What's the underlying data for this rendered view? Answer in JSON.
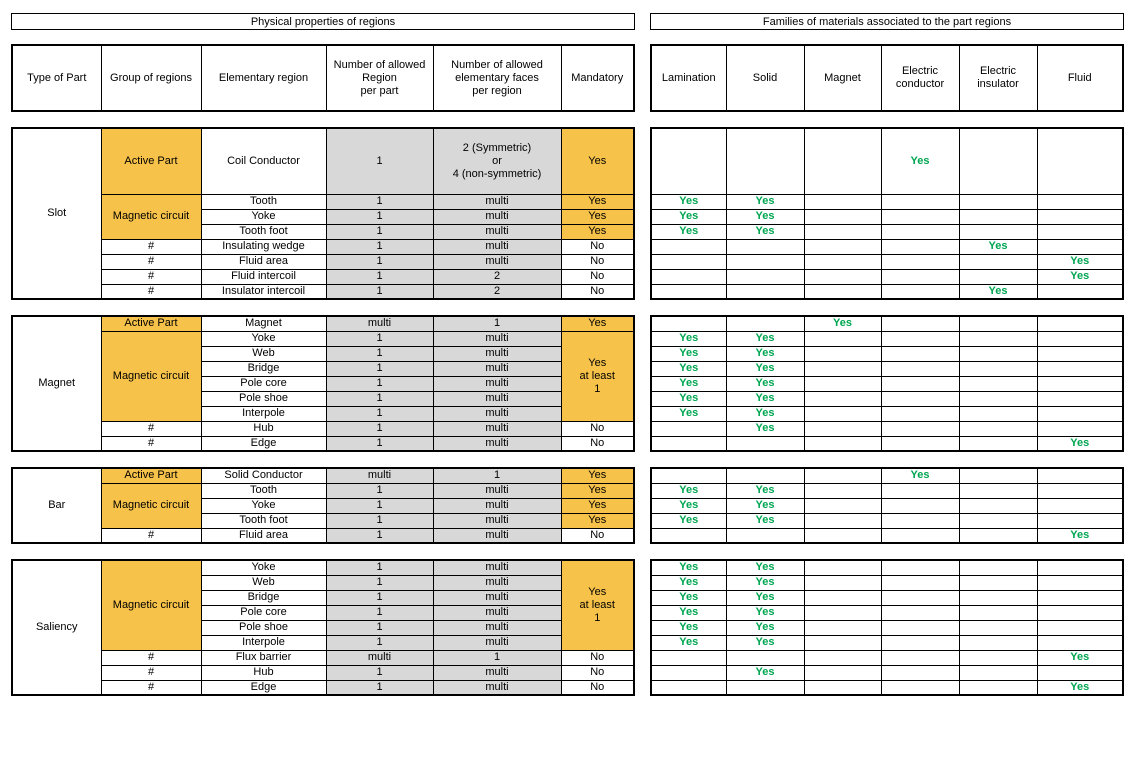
{
  "banners": {
    "left": "Physical properties of regions",
    "right": "Families of materials associated to the part regions"
  },
  "columns": {
    "left": [
      "Type of Part",
      "Group of regions",
      "Elementary region",
      "Number of allowed\nRegion\nper part",
      "Number of allowed\nelementary faces\nper region",
      "Mandatory"
    ],
    "right": [
      "Lamination",
      "Solid",
      "Magnet",
      "Electric\nconductor",
      "Electric\ninsulator",
      "Fluid"
    ]
  },
  "colors": {
    "orange": "#F7C24A",
    "gray": "#D8D8D8",
    "green": "#00A651",
    "border": "#000000"
  },
  "sections": [
    {
      "part": "Slot",
      "groups": [
        {
          "label": "Active Part",
          "span": 1,
          "orange": true
        },
        {
          "label": "Magnetic circuit",
          "span": 3,
          "orange": true
        },
        {
          "label": "#",
          "span": 1,
          "orange": false
        },
        {
          "label": "#",
          "span": 1,
          "orange": false
        },
        {
          "label": "#",
          "span": 1,
          "orange": false
        },
        {
          "label": "#",
          "span": 1,
          "orange": false
        }
      ],
      "mandatory": [
        {
          "text": "Yes",
          "span": 1,
          "orange": true
        },
        {
          "text": "Yes",
          "span": 1,
          "orange": true
        },
        {
          "text": "Yes",
          "span": 1,
          "orange": true
        },
        {
          "text": "Yes",
          "span": 1,
          "orange": true
        },
        {
          "text": "No",
          "span": 1,
          "orange": false
        },
        {
          "text": "No",
          "span": 1,
          "orange": false
        },
        {
          "text": "No",
          "span": 1,
          "orange": false
        },
        {
          "text": "No",
          "span": 1,
          "orange": false
        }
      ],
      "rows": [
        {
          "region": "Coil Conductor",
          "per_part": "1",
          "faces": "2 (Symmetric)\nor\n4 (non-symmetric)",
          "tall": true,
          "materials": [
            "",
            "",
            "",
            "Yes",
            "",
            ""
          ]
        },
        {
          "region": "Tooth",
          "per_part": "1",
          "faces": "multi",
          "materials": [
            "Yes",
            "Yes",
            "",
            "",
            "",
            ""
          ]
        },
        {
          "region": "Yoke",
          "per_part": "1",
          "faces": "multi",
          "materials": [
            "Yes",
            "Yes",
            "",
            "",
            "",
            ""
          ]
        },
        {
          "region": "Tooth foot",
          "per_part": "1",
          "faces": "multi",
          "materials": [
            "Yes",
            "Yes",
            "",
            "",
            "",
            ""
          ]
        },
        {
          "region": "Insulating wedge",
          "per_part": "1",
          "faces": "multi",
          "materials": [
            "",
            "",
            "",
            "",
            "Yes",
            ""
          ]
        },
        {
          "region": "Fluid area",
          "per_part": "1",
          "faces": "multi",
          "materials": [
            "",
            "",
            "",
            "",
            "",
            "Yes"
          ]
        },
        {
          "region": "Fluid intercoil",
          "per_part": "1",
          "faces": "2",
          "materials": [
            "",
            "",
            "",
            "",
            "",
            "Yes"
          ]
        },
        {
          "region": "Insulator intercoil",
          "per_part": "1",
          "faces": "2",
          "materials": [
            "",
            "",
            "",
            "",
            "Yes",
            ""
          ]
        }
      ]
    },
    {
      "part": "Magnet",
      "groups": [
        {
          "label": "Active Part",
          "span": 1,
          "orange": true
        },
        {
          "label": "Magnetic circuit",
          "span": 6,
          "orange": true
        },
        {
          "label": "#",
          "span": 1,
          "orange": false
        },
        {
          "label": "#",
          "span": 1,
          "orange": false
        }
      ],
      "mandatory": [
        {
          "text": "Yes",
          "span": 1,
          "orange": true
        },
        {
          "text": "Yes\nat least\n1",
          "span": 6,
          "orange": true
        },
        {
          "text": "No",
          "span": 1,
          "orange": false
        },
        {
          "text": "No",
          "span": 1,
          "orange": false
        }
      ],
      "rows": [
        {
          "region": "Magnet",
          "per_part": "multi",
          "faces": "1",
          "materials": [
            "",
            "",
            "Yes",
            "",
            "",
            ""
          ]
        },
        {
          "region": "Yoke",
          "per_part": "1",
          "faces": "multi",
          "materials": [
            "Yes",
            "Yes",
            "",
            "",
            "",
            ""
          ]
        },
        {
          "region": "Web",
          "per_part": "1",
          "faces": "multi",
          "materials": [
            "Yes",
            "Yes",
            "",
            "",
            "",
            ""
          ]
        },
        {
          "region": "Bridge",
          "per_part": "1",
          "faces": "multi",
          "materials": [
            "Yes",
            "Yes",
            "",
            "",
            "",
            ""
          ]
        },
        {
          "region": "Pole core",
          "per_part": "1",
          "faces": "multi",
          "materials": [
            "Yes",
            "Yes",
            "",
            "",
            "",
            ""
          ]
        },
        {
          "region": "Pole shoe",
          "per_part": "1",
          "faces": "multi",
          "materials": [
            "Yes",
            "Yes",
            "",
            "",
            "",
            ""
          ]
        },
        {
          "region": "Interpole",
          "per_part": "1",
          "faces": "multi",
          "materials": [
            "Yes",
            "Yes",
            "",
            "",
            "",
            ""
          ]
        },
        {
          "region": "Hub",
          "per_part": "1",
          "faces": "multi",
          "materials": [
            "",
            "Yes",
            "",
            "",
            "",
            ""
          ]
        },
        {
          "region": "Edge",
          "per_part": "1",
          "faces": "multi",
          "materials": [
            "",
            "",
            "",
            "",
            "",
            "Yes"
          ]
        }
      ]
    },
    {
      "part": "Bar",
      "groups": [
        {
          "label": "Active Part",
          "span": 1,
          "orange": true
        },
        {
          "label": "Magnetic circuit",
          "span": 3,
          "orange": true
        },
        {
          "label": "#",
          "span": 1,
          "orange": false
        }
      ],
      "mandatory": [
        {
          "text": "Yes",
          "span": 1,
          "orange": true
        },
        {
          "text": "Yes",
          "span": 1,
          "orange": true
        },
        {
          "text": "Yes",
          "span": 1,
          "orange": true
        },
        {
          "text": "Yes",
          "span": 1,
          "orange": true
        },
        {
          "text": "No",
          "span": 1,
          "orange": false
        }
      ],
      "rows": [
        {
          "region": "Solid Conductor",
          "per_part": "multi",
          "faces": "1",
          "materials": [
            "",
            "",
            "",
            "Yes",
            "",
            ""
          ]
        },
        {
          "region": "Tooth",
          "per_part": "1",
          "faces": "multi",
          "materials": [
            "Yes",
            "Yes",
            "",
            "",
            "",
            ""
          ]
        },
        {
          "region": "Yoke",
          "per_part": "1",
          "faces": "multi",
          "materials": [
            "Yes",
            "Yes",
            "",
            "",
            "",
            ""
          ]
        },
        {
          "region": "Tooth foot",
          "per_part": "1",
          "faces": "multi",
          "materials": [
            "Yes",
            "Yes",
            "",
            "",
            "",
            ""
          ]
        },
        {
          "region": "Fluid area",
          "per_part": "1",
          "faces": "multi",
          "materials": [
            "",
            "",
            "",
            "",
            "",
            "Yes"
          ]
        }
      ]
    },
    {
      "part": "Saliency",
      "groups": [
        {
          "label": "Magnetic circuit",
          "span": 6,
          "orange": true
        },
        {
          "label": "#",
          "span": 1,
          "orange": false
        },
        {
          "label": "#",
          "span": 1,
          "orange": false
        },
        {
          "label": "#",
          "span": 1,
          "orange": false
        }
      ],
      "mandatory": [
        {
          "text": "Yes\nat least\n1",
          "span": 6,
          "orange": true
        },
        {
          "text": "No",
          "span": 1,
          "orange": false
        },
        {
          "text": "No",
          "span": 1,
          "orange": false
        },
        {
          "text": "No",
          "span": 1,
          "orange": false
        }
      ],
      "rows": [
        {
          "region": "Yoke",
          "per_part": "1",
          "faces": "multi",
          "materials": [
            "Yes",
            "Yes",
            "",
            "",
            "",
            ""
          ]
        },
        {
          "region": "Web",
          "per_part": "1",
          "faces": "multi",
          "materials": [
            "Yes",
            "Yes",
            "",
            "",
            "",
            ""
          ]
        },
        {
          "region": "Bridge",
          "per_part": "1",
          "faces": "multi",
          "materials": [
            "Yes",
            "Yes",
            "",
            "",
            "",
            ""
          ]
        },
        {
          "region": "Pole core",
          "per_part": "1",
          "faces": "multi",
          "materials": [
            "Yes",
            "Yes",
            "",
            "",
            "",
            ""
          ]
        },
        {
          "region": "Pole shoe",
          "per_part": "1",
          "faces": "multi",
          "materials": [
            "Yes",
            "Yes",
            "",
            "",
            "",
            ""
          ]
        },
        {
          "region": "Interpole",
          "per_part": "1",
          "faces": "multi",
          "materials": [
            "Yes",
            "Yes",
            "",
            "",
            "",
            ""
          ]
        },
        {
          "region": "Flux barrier",
          "per_part": "multi",
          "faces": "1",
          "materials": [
            "",
            "",
            "",
            "",
            "",
            "Yes"
          ]
        },
        {
          "region": "Hub",
          "per_part": "1",
          "faces": "multi",
          "materials": [
            "",
            "Yes",
            "",
            "",
            "",
            ""
          ]
        },
        {
          "region": "Edge",
          "per_part": "1",
          "faces": "multi",
          "materials": [
            "",
            "",
            "",
            "",
            "",
            "Yes"
          ]
        }
      ]
    }
  ]
}
